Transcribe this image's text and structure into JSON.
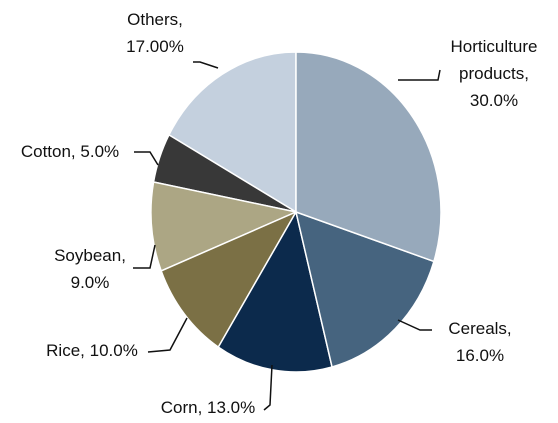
{
  "chart_data": {
    "type": "pie",
    "categories": [
      "Horticulture products,",
      "Cereals,",
      "Corn,",
      "Rice,",
      "Soybean,",
      "Cotton,",
      "Others,"
    ],
    "values": [
      30,
      16,
      13,
      10,
      9,
      5,
      17
    ],
    "value_labels": [
      "30.0%",
      "16.0%",
      "13.0%",
      "10.0%",
      "9.0%",
      "5.0%",
      "17.00%"
    ],
    "colors": [
      "#97a9bb",
      "#46647f",
      "#0c2a4c",
      "#7b7045",
      "#aca684",
      "#383838",
      "#c4d0de"
    ]
  }
}
